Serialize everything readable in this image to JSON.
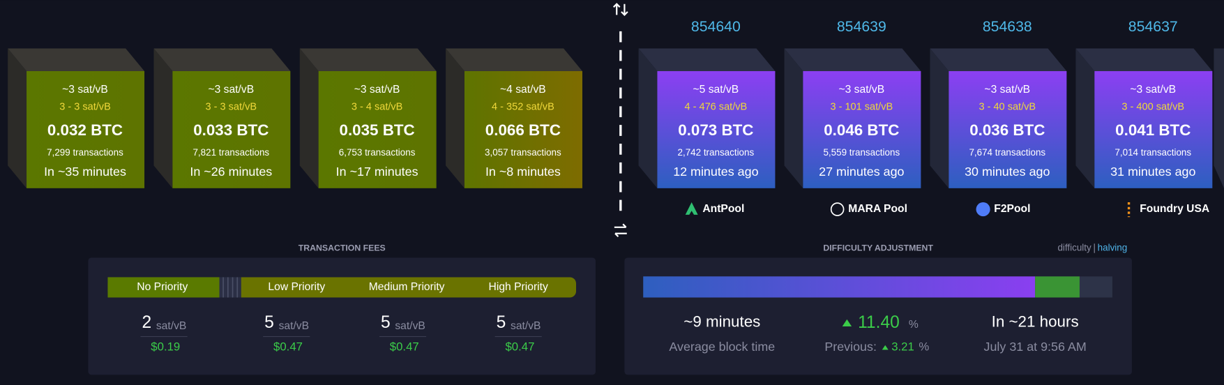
{
  "mempool_blocks": [
    {
      "fee_median": "~3 sat/vB",
      "fee_range": "3 - 3 sat/vB",
      "total": "0.032 BTC",
      "tx_count": "7,299 transactions",
      "eta": "In ~35 minutes"
    },
    {
      "fee_median": "~3 sat/vB",
      "fee_range": "3 - 3 sat/vB",
      "total": "0.033 BTC",
      "tx_count": "7,821 transactions",
      "eta": "In ~26 minutes"
    },
    {
      "fee_median": "~3 sat/vB",
      "fee_range": "3 - 4 sat/vB",
      "total": "0.035 BTC",
      "tx_count": "6,753 transactions",
      "eta": "In ~17 minutes"
    },
    {
      "fee_median": "~4 sat/vB",
      "fee_range": "4 - 352 sat/vB",
      "total": "0.066 BTC",
      "tx_count": "3,057 transactions",
      "eta": "In ~8 minutes"
    }
  ],
  "blocks": [
    {
      "height": "854640",
      "fee_median": "~5 sat/vB",
      "fee_range": "4 - 476 sat/vB",
      "total": "0.073 BTC",
      "tx_count": "2,742 transactions",
      "time_ago": "12 minutes ago",
      "pool": "AntPool"
    },
    {
      "height": "854639",
      "fee_median": "~3 sat/vB",
      "fee_range": "3 - 101 sat/vB",
      "total": "0.046 BTC",
      "tx_count": "5,559 transactions",
      "time_ago": "27 minutes ago",
      "pool": "MARA Pool"
    },
    {
      "height": "854638",
      "fee_median": "~3 sat/vB",
      "fee_range": "3 - 40 sat/vB",
      "total": "0.036 BTC",
      "tx_count": "7,674 transactions",
      "time_ago": "30 minutes ago",
      "pool": "F2Pool"
    },
    {
      "height": "854637",
      "fee_median": "~3 sat/vB",
      "fee_range": "3 - 400 sat/vB",
      "total": "0.041 BTC",
      "tx_count": "7,014 transactions",
      "time_ago": "31 minutes ago",
      "pool": "Foundry USA"
    }
  ],
  "transaction_fees": {
    "title": "TRANSACTION FEES",
    "priorities": [
      {
        "label": "No Priority",
        "rate": "2",
        "unit": "sat/vB",
        "usd": "$0.19"
      },
      {
        "label": "Low Priority",
        "rate": "5",
        "unit": "sat/vB",
        "usd": "$0.47"
      },
      {
        "label": "Medium Priority",
        "rate": "5",
        "unit": "sat/vB",
        "usd": "$0.47"
      },
      {
        "label": "High Priority",
        "rate": "5",
        "unit": "sat/vB",
        "usd": "$0.47"
      }
    ]
  },
  "difficulty": {
    "title": "DIFFICULTY ADJUSTMENT",
    "links": [
      "difficulty",
      "halving"
    ],
    "average_block_time": "~9 minutes",
    "average_block_time_label": "Average block time",
    "change": "11.40",
    "change_unit": "%",
    "previous_label": "Previous:",
    "previous": "3.21",
    "previous_unit": "%",
    "eta": "In ~21 hours",
    "eta_date": "July 31 at 9:56 AM"
  }
}
